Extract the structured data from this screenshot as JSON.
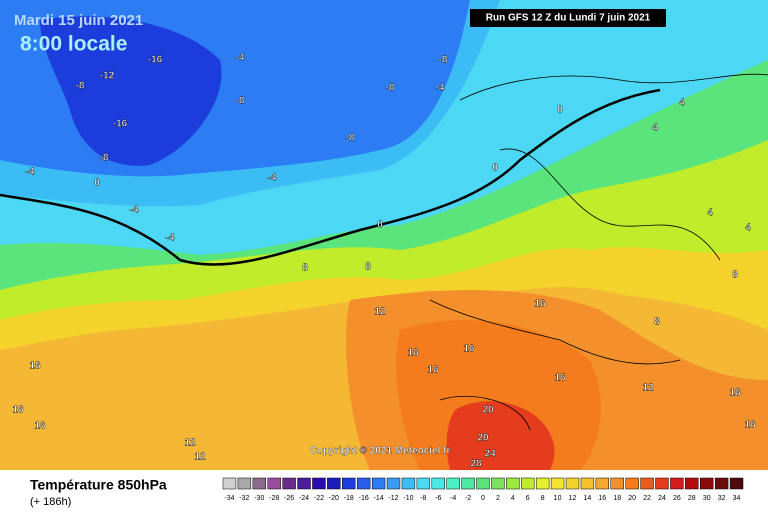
{
  "header": {
    "date": "Mardi 15 juin 2021",
    "time": "8:00 locale",
    "run": "Run GFS 12 Z du Lundi 7 juin 2021"
  },
  "copyright": "Copyright © 2021 Meteociel.fr",
  "footer": {
    "title": "Température 850hPa",
    "lead": "(+ 186h)"
  },
  "map_labels": [
    -16,
    -12,
    -8,
    -16,
    -8,
    -4,
    0,
    -4,
    -4,
    -4,
    -8,
    -4,
    -8,
    -8,
    -8,
    -4,
    0,
    8,
    8,
    12,
    0,
    0,
    4,
    4,
    4,
    4,
    8,
    16,
    16,
    16,
    16,
    16,
    16,
    16,
    12,
    12,
    20,
    24,
    28,
    20,
    16,
    16,
    16,
    12,
    8
  ],
  "legend": {
    "values": [
      -34,
      -32,
      -30,
      -28,
      -26,
      -24,
      -22,
      -20,
      -18,
      -16,
      -14,
      -12,
      -10,
      -8,
      -6,
      -4,
      -2,
      0,
      2,
      4,
      6,
      8,
      10,
      12,
      14,
      16,
      18,
      20,
      22,
      24,
      26,
      28,
      30,
      32,
      34
    ],
    "colors": [
      "#d0d0d0",
      "#a8a8a8",
      "#8c6c8c",
      "#9c4c9c",
      "#6c2c8c",
      "#4c1c9c",
      "#2c0cac",
      "#1c1cbc",
      "#1c3cdc",
      "#2c5cec",
      "#2c7cf4",
      "#3c9cf4",
      "#3cbcf4",
      "#4cd8f4",
      "#4ce8e4",
      "#4cf0c4",
      "#4ce8a4",
      "#5ce47c",
      "#7ce45c",
      "#9ce83c",
      "#c0ec2c",
      "#e4f02c",
      "#f4e42c",
      "#f4d42c",
      "#f4c02c",
      "#f4a82c",
      "#f4902c",
      "#f47c1c",
      "#ec5c1c",
      "#e43c1c",
      "#d41c1c",
      "#b40c0c",
      "#8c0c0c",
      "#6c0c0c",
      "#4c0c0c"
    ]
  }
}
